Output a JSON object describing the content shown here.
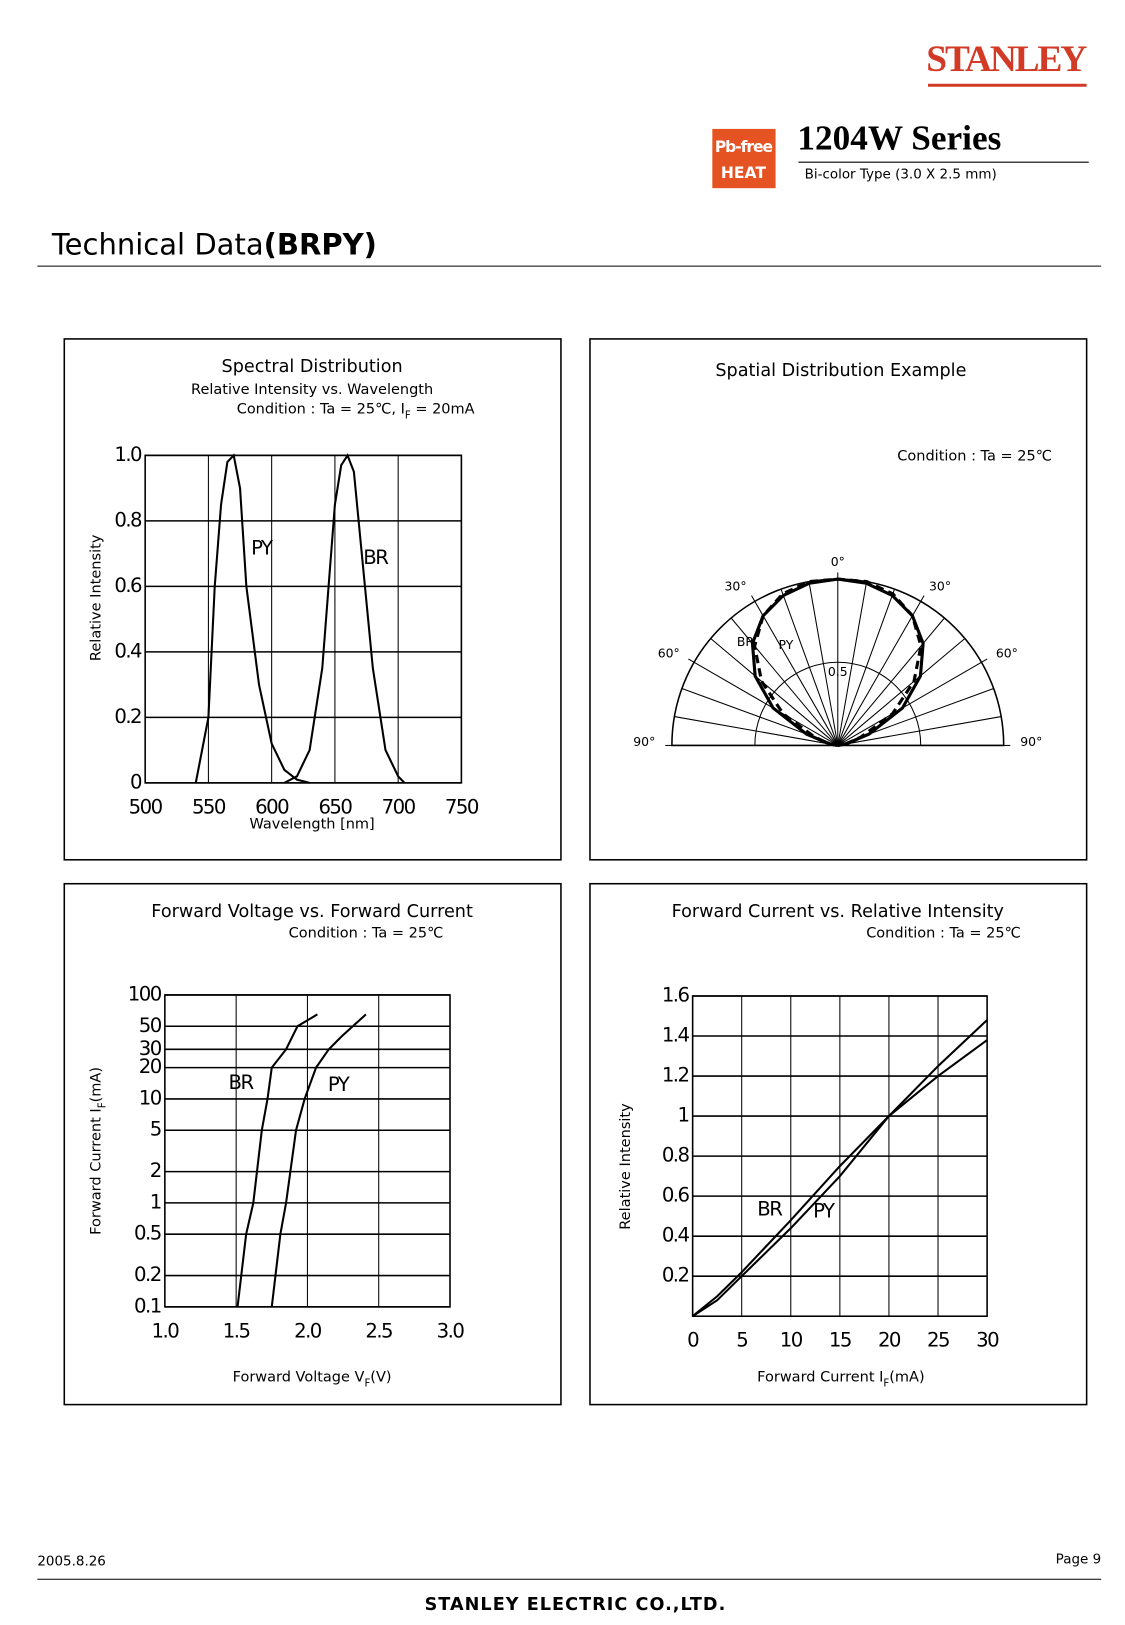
{
  "header": {
    "logo": "STANLEY",
    "badge": [
      "Pb-free",
      "HEAT"
    ],
    "series_title": "1204W Series",
    "subtitle": "Bi-color Type (3.0 X 2.5 mm)"
  },
  "section_title": {
    "text": "Technical Data",
    "bold": "(BRPY)"
  },
  "chart_data": [
    {
      "type": "line",
      "title": "Spectral Distribution",
      "subtitle": "Relative Intensity vs. Wavelength",
      "condition": [
        "Condition : Ta = 25℃, I",
        "F",
        " = 20mA"
      ],
      "xlabel": "Wavelength [nm]",
      "ylabel": "Relative Intensity",
      "xlim": [
        500,
        750
      ],
      "ylim": [
        0,
        1
      ],
      "xticks": [
        500,
        550,
        600,
        650,
        700,
        750
      ],
      "yticks": [
        0,
        0.2,
        0.4,
        0.6,
        0.8,
        {
          "value": 1,
          "label": "1.0"
        }
      ],
      "grid": true,
      "series": [
        {
          "name": "PY",
          "color": "#000000",
          "x": [
            540,
            550,
            555,
            560,
            565,
            570,
            575,
            580,
            590,
            600,
            610,
            620,
            630
          ],
          "values": [
            0,
            0.2,
            0.6,
            0.85,
            0.98,
            1,
            0.9,
            0.6,
            0.3,
            0.12,
            0.04,
            0.01,
            0
          ]
        },
        {
          "name": "BR",
          "color": "#000000",
          "x": [
            610,
            620,
            630,
            640,
            645,
            650,
            655,
            660,
            665,
            670,
            680,
            690,
            700,
            705
          ],
          "values": [
            0,
            0.02,
            0.1,
            0.35,
            0.6,
            0.85,
            0.97,
            1,
            0.95,
            0.75,
            0.35,
            0.1,
            0.02,
            0
          ]
        }
      ]
    },
    {
      "type": "polar",
      "title": "Spatial Distribution Example",
      "condition": [
        "Condition : Ta = 25℃"
      ],
      "theta": [
        -90,
        -80,
        -70,
        -60,
        -50,
        -40,
        -30,
        -20,
        -10,
        0,
        10,
        20,
        30,
        40,
        50,
        60,
        70,
        80,
        90
      ],
      "rlim": [
        0,
        1
      ],
      "rticks": [
        0.5
      ],
      "thetaticks": [
        {
          "value": -90,
          "label": "90°"
        },
        {
          "value": -60,
          "label": "60°"
        },
        {
          "value": -30,
          "label": "30°"
        },
        {
          "value": 0,
          "label": "0°"
        },
        {
          "value": 30,
          "label": "30°"
        },
        {
          "value": 60,
          "label": "60°"
        },
        {
          "value": 90,
          "label": "90°"
        }
      ],
      "series": [
        {
          "name": "BR",
          "color": "#000000",
          "style": "solid",
          "values": [
            0,
            0.05,
            0.2,
            0.45,
            0.65,
            0.8,
            0.9,
            0.96,
            0.99,
            1,
            0.99,
            0.96,
            0.9,
            0.8,
            0.65,
            0.45,
            0.2,
            0.05,
            0
          ]
        },
        {
          "name": "PY",
          "color": "#000000",
          "style": "dashed",
          "values": [
            0,
            0.05,
            0.15,
            0.38,
            0.6,
            0.78,
            0.9,
            0.97,
            1,
            1,
            1,
            0.97,
            0.9,
            0.78,
            0.6,
            0.38,
            0.15,
            0.05,
            0
          ]
        }
      ]
    },
    {
      "type": "line",
      "title": "Forward Voltage vs. Forward Current",
      "condition": [
        "Condition : Ta = 25℃"
      ],
      "xlabel": [
        "Forward Voltage  V",
        "F",
        "(V)"
      ],
      "ylabel": [
        "Forward Current  I",
        "F",
        "(mA)"
      ],
      "xlim": [
        1,
        3
      ],
      "ylim": [
        0.1,
        100
      ],
      "ylog": true,
      "xticks": [
        {
          "value": 1,
          "label": "1.0"
        },
        1.5,
        {
          "value": 2,
          "label": "2.0"
        },
        2.5,
        {
          "value": 3,
          "label": "3.0"
        }
      ],
      "yticks": [
        0.1,
        0.2,
        0.5,
        1,
        2,
        5,
        10,
        20,
        30,
        50,
        100
      ],
      "grid": true,
      "series": [
        {
          "name": "BR",
          "color": "#000000",
          "x": [
            1.51,
            1.57,
            1.62,
            1.68,
            1.72,
            1.75,
            1.85,
            1.93,
            2.07
          ],
          "values": [
            0.1,
            0.5,
            1,
            5,
            10,
            20,
            30,
            50,
            65
          ]
        },
        {
          "name": "PY",
          "color": "#000000",
          "x": [
            1.75,
            1.81,
            1.85,
            1.92,
            1.98,
            2.06,
            2.15,
            2.24,
            2.41
          ],
          "values": [
            0.1,
            0.5,
            1,
            5,
            10,
            20,
            30,
            40,
            65
          ]
        }
      ]
    },
    {
      "type": "line",
      "title": "Forward Current vs. Relative Intensity",
      "condition": [
        "Condition : Ta = 25℃"
      ],
      "xlabel": [
        "Forward Current I",
        "F",
        "(mA)"
      ],
      "ylabel": "Relative Intensity",
      "xlim": [
        0,
        30
      ],
      "ylim": [
        0,
        1.6
      ],
      "xticks": [
        0,
        5,
        10,
        15,
        20,
        25,
        30
      ],
      "yticks": [
        0.2,
        0.4,
        0.6,
        0.8,
        1,
        1.2,
        1.4,
        1.6
      ],
      "grid": true,
      "series": [
        {
          "name": "BR",
          "color": "#000000",
          "x": [
            0,
            2.5,
            5,
            10,
            15,
            20,
            25,
            30
          ],
          "values": [
            0,
            0.08,
            0.2,
            0.44,
            0.7,
            1,
            1.25,
            1.48
          ]
        },
        {
          "name": "PY",
          "color": "#000000",
          "x": [
            0,
            2.5,
            5,
            10,
            15,
            20,
            25,
            30
          ],
          "values": [
            0,
            0.1,
            0.22,
            0.48,
            0.75,
            1,
            1.2,
            1.38
          ]
        }
      ]
    }
  ],
  "footer": {
    "date": "2005.8.26",
    "page": "Page 9",
    "company": "STANLEY ELECTRIC CO.,LTD."
  }
}
